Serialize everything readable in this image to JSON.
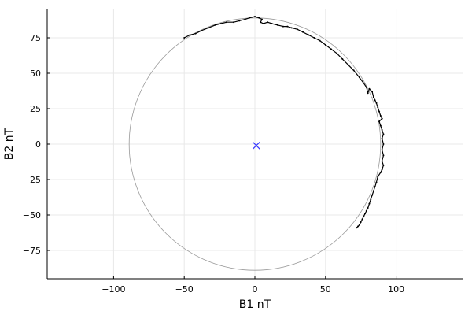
{
  "chart_data": {
    "type": "scatter",
    "xlabel": "B1 nT",
    "ylabel": "B2 nT",
    "xlim": [
      -147,
      147
    ],
    "ylim": [
      -95,
      95
    ],
    "grid": true,
    "legend": "none",
    "x_ticks": [
      -100,
      -50,
      0,
      50,
      100
    ],
    "x_tick_labels": [
      "−100",
      "−50",
      "0",
      "50",
      "100"
    ],
    "y_ticks": [
      -75,
      -50,
      -25,
      0,
      25,
      50,
      75
    ],
    "y_tick_labels": [
      "−75",
      "−50",
      "−25",
      "0",
      "25",
      "50",
      "75"
    ],
    "reference_circle": {
      "center": [
        0,
        0
      ],
      "radius": 89,
      "color": "#999999"
    },
    "center_marker": {
      "x": 1,
      "y": -1,
      "symbol": "x",
      "color": "#3a3aff"
    },
    "series": [
      {
        "color": "#000000",
        "points": [
          [
            -50,
            75
          ],
          [
            -46,
            77
          ],
          [
            -42,
            78
          ],
          [
            -38,
            80
          ],
          [
            -33,
            82
          ],
          [
            -28,
            84
          ],
          [
            -24,
            85
          ],
          [
            -20,
            86
          ],
          [
            -15,
            86
          ],
          [
            -11,
            87
          ],
          [
            -7,
            88
          ],
          [
            -4,
            89
          ],
          [
            0,
            90
          ],
          [
            3,
            89
          ],
          [
            5,
            88
          ],
          [
            4,
            86
          ],
          [
            6,
            85
          ],
          [
            9,
            86
          ],
          [
            12,
            85
          ],
          [
            16,
            84
          ],
          [
            20,
            83
          ],
          [
            23,
            83
          ],
          [
            26,
            82
          ],
          [
            30,
            81
          ],
          [
            34,
            79
          ],
          [
            38,
            77
          ],
          [
            42,
            75
          ],
          [
            46,
            73
          ],
          [
            50,
            70
          ],
          [
            54,
            67
          ],
          [
            58,
            64
          ],
          [
            62,
            60
          ],
          [
            66,
            56
          ],
          [
            70,
            52
          ],
          [
            74,
            47
          ],
          [
            77,
            43
          ],
          [
            79,
            40
          ],
          [
            80,
            36
          ],
          [
            81,
            39
          ],
          [
            83,
            37
          ],
          [
            84,
            33
          ],
          [
            85,
            31
          ],
          [
            86,
            29
          ],
          [
            87,
            26
          ],
          [
            88,
            23
          ],
          [
            89,
            20
          ],
          [
            90,
            18
          ],
          [
            88,
            16
          ],
          [
            89,
            13
          ],
          [
            90,
            10
          ],
          [
            91,
            7
          ],
          [
            90,
            4
          ],
          [
            91,
            0
          ],
          [
            90,
            -4
          ],
          [
            91,
            -8
          ],
          [
            90,
            -12
          ],
          [
            91,
            -15
          ],
          [
            90,
            -18
          ],
          [
            89,
            -20
          ],
          [
            87,
            -23
          ],
          [
            86,
            -27
          ],
          [
            85,
            -30
          ],
          [
            84,
            -33
          ],
          [
            83,
            -36
          ],
          [
            82,
            -39
          ],
          [
            81,
            -42
          ],
          [
            80,
            -45
          ],
          [
            79,
            -47
          ],
          [
            78,
            -49
          ],
          [
            77,
            -51
          ],
          [
            76,
            -53
          ],
          [
            75,
            -55
          ],
          [
            74,
            -57
          ],
          [
            73,
            -58
          ],
          [
            72,
            -59
          ]
        ]
      }
    ]
  }
}
